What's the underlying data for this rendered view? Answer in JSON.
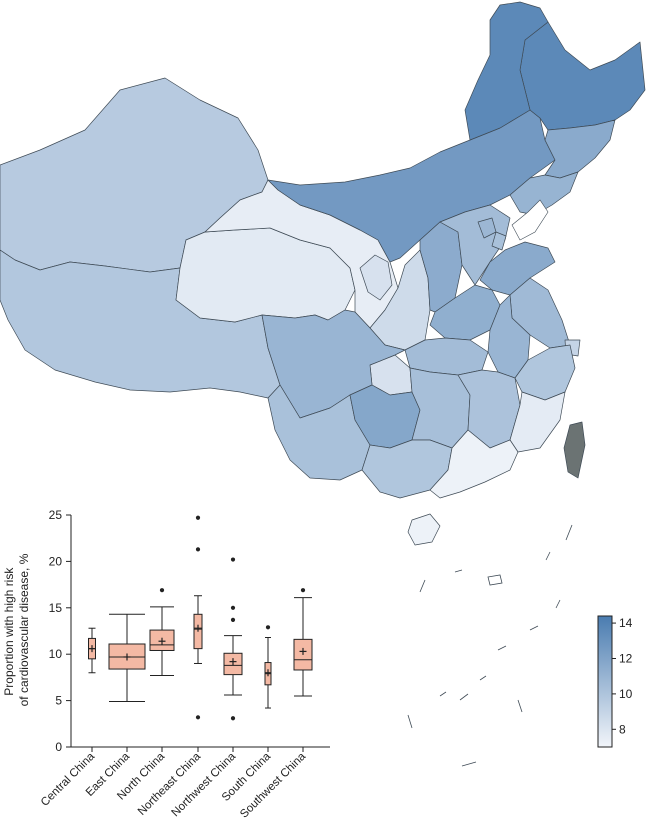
{
  "map": {
    "regions": [
      {
        "name": "Heilongjiang",
        "value": 13.6
      },
      {
        "name": "Jilin",
        "value": 11.6
      },
      {
        "name": "Liaoning",
        "value": 11.0
      },
      {
        "name": "Inner Mongolia",
        "value": 12.6
      },
      {
        "name": "Xinjiang",
        "value": 9.6
      },
      {
        "name": "Tibet",
        "value": 9.8
      },
      {
        "name": "Qinghai",
        "value": 7.7
      },
      {
        "name": "Gansu",
        "value": 7.5
      },
      {
        "name": "Ningxia",
        "value": 8.2
      },
      {
        "name": "Shaanxi",
        "value": 8.6
      },
      {
        "name": "Shanxi",
        "value": 11.5
      },
      {
        "name": "Hebei",
        "value": 10.5
      },
      {
        "name": "Beijing",
        "value": 10.8
      },
      {
        "name": "Tianjin",
        "value": 10.2
      },
      {
        "name": "Shandong",
        "value": 11.6
      },
      {
        "name": "Henan",
        "value": 11.3
      },
      {
        "name": "Jiangsu",
        "value": 10.6
      },
      {
        "name": "Anhui",
        "value": 10.9
      },
      {
        "name": "Hubei",
        "value": 10.5
      },
      {
        "name": "Sichuan",
        "value": 10.9
      },
      {
        "name": "Chongqing",
        "value": 8.2
      },
      {
        "name": "Guizhou",
        "value": 11.8
      },
      {
        "name": "Yunnan",
        "value": 10.2
      },
      {
        "name": "Hunan",
        "value": 10.3
      },
      {
        "name": "Jiangxi",
        "value": 10.1
      },
      {
        "name": "Zhejiang",
        "value": 9.9
      },
      {
        "name": "Shanghai",
        "value": 9.0
      },
      {
        "name": "Fujian",
        "value": 7.6
      },
      {
        "name": "Guangxi",
        "value": 9.9
      },
      {
        "name": "Guangdong",
        "value": 7.2
      },
      {
        "name": "Hainan",
        "value": 7.2
      }
    ],
    "no_data_color": "#6b7373"
  },
  "legend": {
    "ticks": [
      "14",
      "12",
      "10",
      "8"
    ],
    "range": [
      7,
      14.4
    ],
    "color_low": "#f2f5fa",
    "color_high": "#4a7cb0"
  },
  "chart_data": {
    "type": "boxplot",
    "ylabel": "Proportion with high risk of cardiovascular disease, %",
    "ylabel_lines": [
      "Proportion with high risk",
      "of cardiovascular disease, %"
    ],
    "ylim": [
      0,
      25
    ],
    "yticks": [
      "0",
      "5",
      "10",
      "15",
      "20",
      "25"
    ],
    "categories": [
      "Central China",
      "East China",
      "North China",
      "Northeast China",
      "Northwest China",
      "South China",
      "Southwest China"
    ],
    "boxes": [
      {
        "category": "Central China",
        "whisker_low": 8.0,
        "q1": 9.5,
        "median": 10.6,
        "q3": 11.7,
        "whisker_high": 12.8,
        "mean": 10.6,
        "outliers": []
      },
      {
        "category": "East China",
        "whisker_low": 4.9,
        "q1": 8.4,
        "median": 9.7,
        "q3": 11.1,
        "whisker_high": 14.3,
        "mean": 9.7,
        "outliers": []
      },
      {
        "category": "North China",
        "whisker_low": 7.7,
        "q1": 10.4,
        "median": 11.0,
        "q3": 12.6,
        "whisker_high": 15.1,
        "mean": 11.4,
        "outliers": [
          16.9
        ]
      },
      {
        "category": "Northeast China",
        "whisker_low": 9.0,
        "q1": 10.6,
        "median": 12.7,
        "q3": 14.3,
        "whisker_high": 16.3,
        "mean": 12.8,
        "outliers": [
          3.2,
          21.3,
          24.7
        ]
      },
      {
        "category": "Northwest China",
        "whisker_low": 5.6,
        "q1": 7.8,
        "median": 8.8,
        "q3": 10.1,
        "whisker_high": 12.0,
        "mean": 9.2,
        "outliers": [
          3.1,
          13.7,
          15.0,
          20.2
        ]
      },
      {
        "category": "South China",
        "whisker_low": 4.2,
        "q1": 6.7,
        "median": 7.9,
        "q3": 9.1,
        "whisker_high": 11.8,
        "mean": 8.0,
        "outliers": [
          12.9
        ]
      },
      {
        "category": "Southwest China",
        "whisker_low": 5.5,
        "q1": 8.3,
        "median": 9.4,
        "q3": 11.6,
        "whisker_high": 16.1,
        "mean": 10.3,
        "outliers": [
          16.9
        ]
      }
    ],
    "box_color": "#f4b9a4",
    "grid": false
  }
}
